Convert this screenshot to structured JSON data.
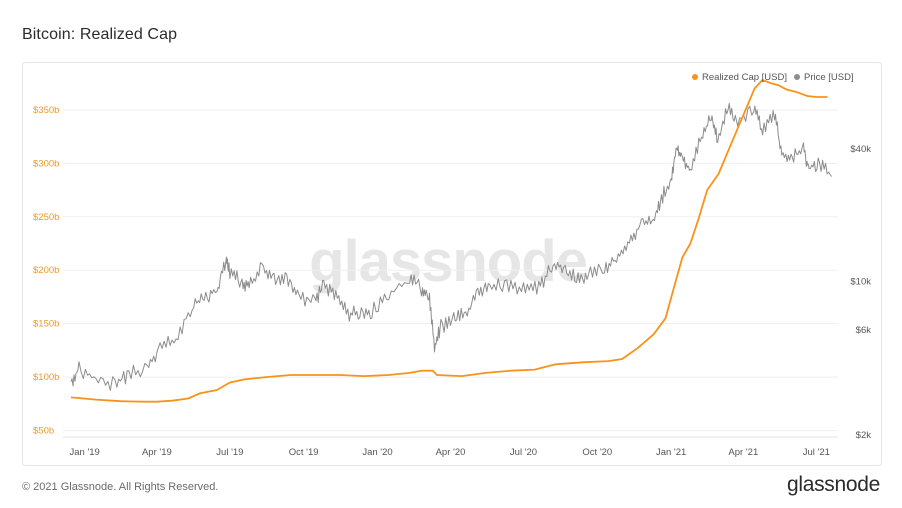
{
  "header": {
    "title": "Bitcoin: Realized Cap"
  },
  "footer": {
    "copyright": "© 2021 Glassnode. All Rights Reserved.",
    "brand": "glassnode"
  },
  "watermark": "glassnode",
  "colors": {
    "realized_cap": "#f7931a",
    "price": "#8c8c8c",
    "grid": "#efefef"
  },
  "chart_data": {
    "type": "line",
    "x_ticks": [
      "Jan '19",
      "Apr '19",
      "Jul '19",
      "Oct '19",
      "Jan '20",
      "Apr '20",
      "Jul '20",
      "Oct '20",
      "Jan '21",
      "Apr '21",
      "Jul '21"
    ],
    "y_left_ticks": [
      "$50b",
      "$100b",
      "$150b",
      "$200b",
      "$250b",
      "$300b",
      "$350b"
    ],
    "y_left_values": [
      50,
      100,
      150,
      200,
      250,
      300,
      350
    ],
    "y_left_range": [
      44,
      377
    ],
    "y_right_ticks": [
      "$2k",
      "$6k",
      "$10k",
      "$40k"
    ],
    "y_right_values": [
      2000,
      6000,
      10000,
      40000
    ],
    "y_right_scale": "log",
    "legend_position": "top-right",
    "series": [
      {
        "name": "Realized Cap [USD]",
        "axis": "left",
        "color": "#f7931a",
        "points": [
          [
            "2018-12-15",
            81
          ],
          [
            "2019-01-15",
            79
          ],
          [
            "2019-02-15",
            77.5
          ],
          [
            "2019-03-15",
            77
          ],
          [
            "2019-04-01",
            77
          ],
          [
            "2019-04-20",
            78
          ],
          [
            "2019-05-10",
            80
          ],
          [
            "2019-05-25",
            85
          ],
          [
            "2019-06-15",
            88
          ],
          [
            "2019-07-01",
            95
          ],
          [
            "2019-07-20",
            98
          ],
          [
            "2019-08-15",
            100
          ],
          [
            "2019-09-15",
            102
          ],
          [
            "2019-10-15",
            102
          ],
          [
            "2019-11-15",
            102
          ],
          [
            "2019-12-15",
            101
          ],
          [
            "2020-01-15",
            102
          ],
          [
            "2020-02-10",
            104
          ],
          [
            "2020-02-25",
            106
          ],
          [
            "2020-03-10",
            106
          ],
          [
            "2020-03-15",
            102
          ],
          [
            "2020-04-15",
            101
          ],
          [
            "2020-05-15",
            104
          ],
          [
            "2020-06-15",
            106
          ],
          [
            "2020-07-15",
            107
          ],
          [
            "2020-08-10",
            112
          ],
          [
            "2020-09-15",
            114
          ],
          [
            "2020-10-15",
            115
          ],
          [
            "2020-11-01",
            117
          ],
          [
            "2020-11-20",
            127
          ],
          [
            "2020-12-10",
            140
          ],
          [
            "2020-12-25",
            155
          ],
          [
            "2021-01-05",
            185
          ],
          [
            "2021-01-15",
            212
          ],
          [
            "2021-01-25",
            225
          ],
          [
            "2021-02-05",
            250
          ],
          [
            "2021-02-15",
            275
          ],
          [
            "2021-03-01",
            290
          ],
          [
            "2021-03-15",
            315
          ],
          [
            "2021-04-01",
            345
          ],
          [
            "2021-04-15",
            370
          ],
          [
            "2021-04-25",
            378
          ],
          [
            "2021-05-05",
            375
          ],
          [
            "2021-05-15",
            373
          ],
          [
            "2021-05-25",
            369
          ],
          [
            "2021-06-05",
            367
          ],
          [
            "2021-06-20",
            363
          ],
          [
            "2021-07-01",
            362
          ],
          [
            "2021-07-15",
            362
          ]
        ]
      },
      {
        "name": "Price [USD]",
        "axis": "right",
        "color": "#8c8c8c",
        "points": [
          [
            "2018-12-15",
            3500
          ],
          [
            "2018-12-25",
            4000
          ],
          [
            "2019-01-15",
            3600
          ],
          [
            "2019-02-08",
            3400
          ],
          [
            "2019-02-25",
            3800
          ],
          [
            "2019-03-20",
            4000
          ],
          [
            "2019-04-05",
            5000
          ],
          [
            "2019-04-25",
            5400
          ],
          [
            "2019-05-15",
            7800
          ],
          [
            "2019-05-30",
            8500
          ],
          [
            "2019-06-15",
            9000
          ],
          [
            "2019-06-26",
            12500
          ],
          [
            "2019-07-01",
            11000
          ],
          [
            "2019-07-15",
            10000
          ],
          [
            "2019-07-25",
            9500
          ],
          [
            "2019-08-10",
            11600
          ],
          [
            "2019-08-25",
            10100
          ],
          [
            "2019-09-10",
            10400
          ],
          [
            "2019-09-25",
            8300
          ],
          [
            "2019-10-15",
            8200
          ],
          [
            "2019-10-26",
            9500
          ],
          [
            "2019-11-10",
            8700
          ],
          [
            "2019-11-25",
            7100
          ],
          [
            "2019-12-10",
            7200
          ],
          [
            "2019-12-25",
            7300
          ],
          [
            "2020-01-15",
            8700
          ],
          [
            "2020-02-10",
            10200
          ],
          [
            "2020-02-25",
            9300
          ],
          [
            "2020-03-05",
            8800
          ],
          [
            "2020-03-12",
            5000
          ],
          [
            "2020-03-20",
            6200
          ],
          [
            "2020-04-05",
            6800
          ],
          [
            "2020-04-20",
            7100
          ],
          [
            "2020-05-05",
            9000
          ],
          [
            "2020-05-20",
            9500
          ],
          [
            "2020-06-10",
            9700
          ],
          [
            "2020-07-01",
            9100
          ],
          [
            "2020-07-20",
            9300
          ],
          [
            "2020-08-05",
            11500
          ],
          [
            "2020-08-20",
            11800
          ],
          [
            "2020-09-05",
            10200
          ],
          [
            "2020-09-20",
            10800
          ],
          [
            "2020-10-10",
            11400
          ],
          [
            "2020-10-25",
            13000
          ],
          [
            "2020-11-10",
            15300
          ],
          [
            "2020-11-25",
            18000
          ],
          [
            "2020-12-10",
            18700
          ],
          [
            "2020-12-20",
            23800
          ],
          [
            "2021-01-01",
            29000
          ],
          [
            "2021-01-08",
            40000
          ],
          [
            "2021-01-15",
            36000
          ],
          [
            "2021-01-25",
            32000
          ],
          [
            "2021-02-08",
            46000
          ],
          [
            "2021-02-20",
            56000
          ],
          [
            "2021-02-28",
            45000
          ],
          [
            "2021-03-13",
            61000
          ],
          [
            "2021-03-25",
            53000
          ],
          [
            "2021-04-14",
            63000
          ],
          [
            "2021-04-25",
            49000
          ],
          [
            "2021-05-10",
            58000
          ],
          [
            "2021-05-19",
            37000
          ],
          [
            "2021-06-01",
            36500
          ],
          [
            "2021-06-15",
            40000
          ],
          [
            "2021-06-22",
            32500
          ],
          [
            "2021-07-05",
            34500
          ],
          [
            "2021-07-20",
            30000
          ]
        ]
      }
    ]
  }
}
